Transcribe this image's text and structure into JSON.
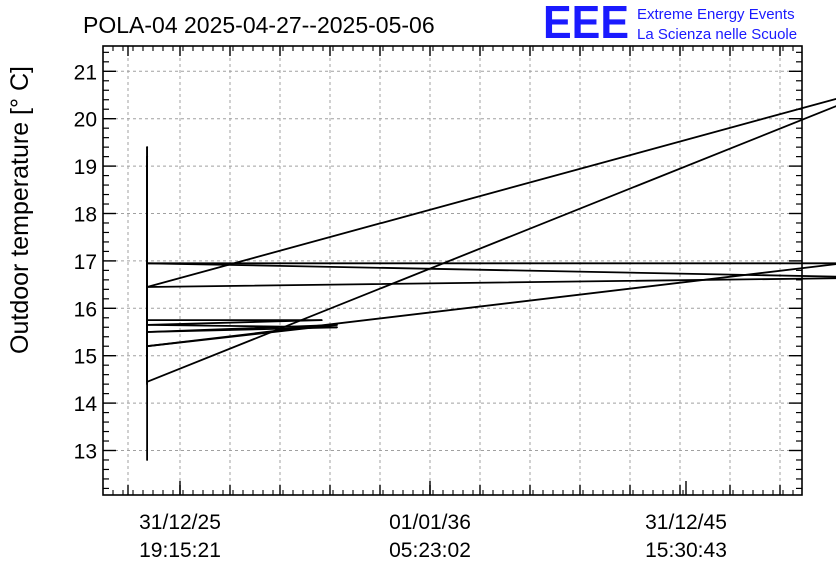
{
  "chart_data": {
    "type": "line",
    "title": "POLA-04 2025-04-27--2025-05-06",
    "ylabel": "Outdoor temperature [° C]",
    "xlabel": "",
    "ylim": [
      12,
      21.5
    ],
    "y_ticks": [
      13,
      14,
      15,
      16,
      17,
      18,
      19,
      20,
      21
    ],
    "x_ticks": [
      {
        "label_line1": "31/12/25",
        "label_line2": "19:15:21"
      },
      {
        "label_line1": "01/01/36",
        "label_line2": "05:23:02"
      },
      {
        "label_line1": "31/12/45",
        "label_line2": "15:30:43"
      }
    ],
    "grid": true,
    "line_color": "#000000",
    "series": [
      {
        "x": [
          -0.13,
          -0.13,
          -0.13,
          -0.13,
          -0.13,
          -0.13,
          -0.13,
          -0.13,
          -0.13,
          -0.13,
          0.56,
          -0.13,
          0.62,
          -0.13,
          0.62,
          -0.13,
          2.62,
          -0.13,
          2.77,
          2.82,
          -0.13,
          2.82,
          -0.13
        ],
        "y": [
          12.8,
          19.4,
          14.4,
          19.2,
          14.5,
          16.4,
          16.95,
          16.6,
          15.8,
          15.75,
          15.75,
          15.65,
          15.6,
          15.5,
          15.65,
          15.2,
          16.95,
          16.95,
          16.65,
          16.65,
          16.45,
          20.75,
          14.45
        ]
      }
    ]
  },
  "logo": {
    "mark": "EEE",
    "line1": "Extreme Energy Events",
    "line2": "La Scienza nelle Scuole",
    "color": "#1a1aff"
  }
}
